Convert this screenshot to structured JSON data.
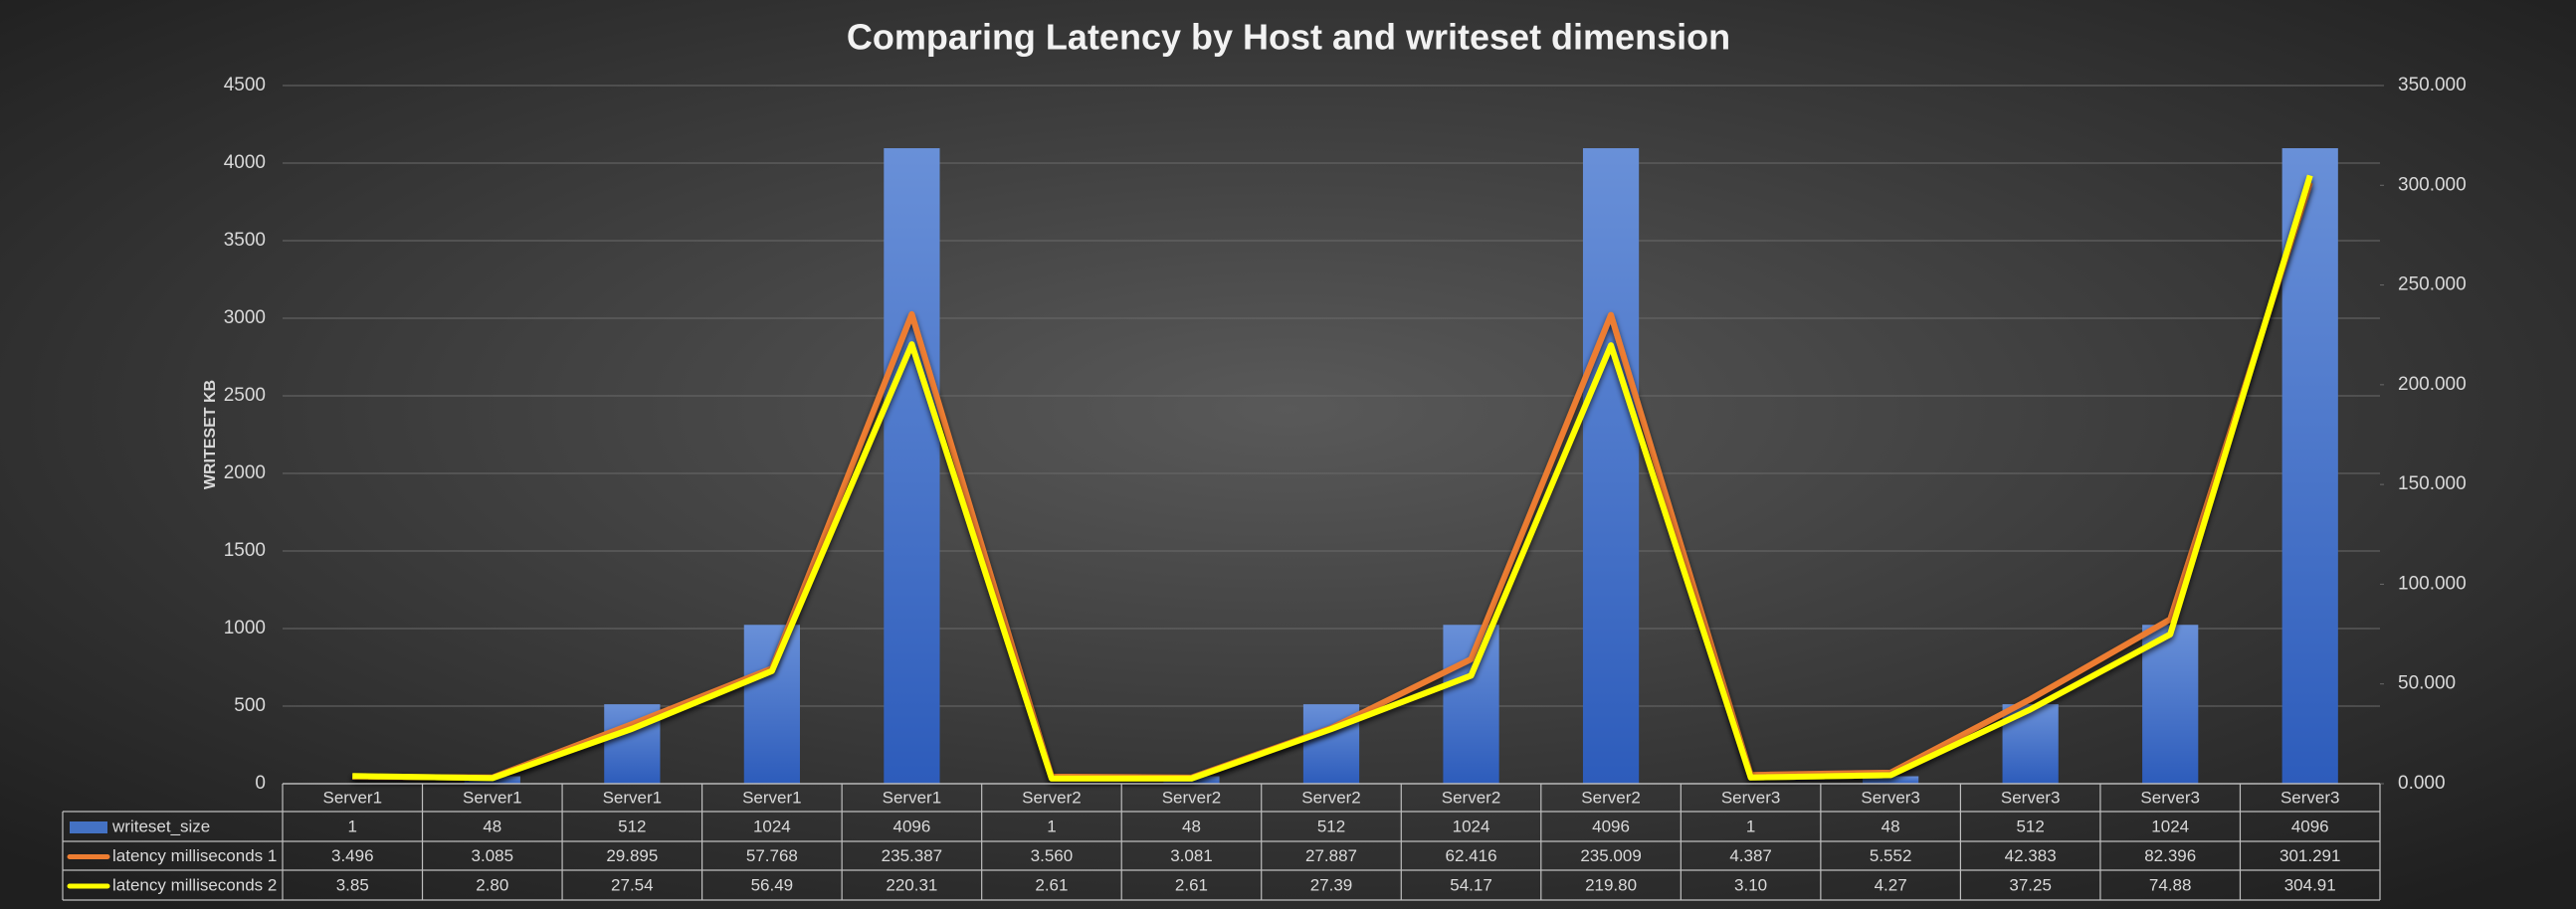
{
  "chart_data": {
    "type": "bar_line_table",
    "title": "Comparing Latency by Host and writeset dimension",
    "y_label": "WRITESET KB",
    "categories": [
      "Server1",
      "Server1",
      "Server1",
      "Server1",
      "Server1",
      "Server2",
      "Server2",
      "Server2",
      "Server2",
      "Server2",
      "Server3",
      "Server3",
      "Server3",
      "Server3",
      "Server3"
    ],
    "series": [
      {
        "name": "writeset_size",
        "type": "bar",
        "color": "#4472c4",
        "values": [
          1,
          48,
          512,
          1024,
          4096,
          1,
          48,
          512,
          1024,
          4096,
          1,
          48,
          512,
          1024,
          4096
        ]
      },
      {
        "name": "latency milliseconds 1",
        "type": "line",
        "axis": "y2",
        "color": "#ed7d31",
        "values": [
          3.496,
          3.085,
          29.895,
          57.768,
          235.387,
          3.56,
          3.081,
          27.887,
          62.416,
          235.009,
          4.387,
          5.552,
          42.383,
          82.396,
          301.291
        ],
        "value_labels": [
          "3.496",
          "3.085",
          "29.895",
          "57.768",
          "235.387",
          "3.560",
          "3.081",
          "27.887",
          "62.416",
          "235.009",
          "4.387",
          "5.552",
          "42.383",
          "82.396",
          "301.291"
        ]
      },
      {
        "name": "latency milliseconds 2",
        "type": "line",
        "axis": "y2",
        "color": "#ffff00",
        "values": [
          3.85,
          2.8,
          27.54,
          56.49,
          220.31,
          2.61,
          2.61,
          27.39,
          54.17,
          219.8,
          3.1,
          4.27,
          37.25,
          74.88,
          304.91
        ],
        "value_labels": [
          "3.85",
          "2.80",
          "27.54",
          "56.49",
          "220.31",
          "2.61",
          "2.61",
          "27.39",
          "54.17",
          "219.80",
          "3.10",
          "4.27",
          "37.25",
          "74.88",
          "304.91"
        ]
      }
    ],
    "ylim": [
      0,
      4500
    ],
    "yticks": [
      0,
      500,
      1000,
      1500,
      2000,
      2500,
      3000,
      3500,
      4000,
      4500
    ],
    "y2lim": [
      0,
      350
    ],
    "y2ticks": [
      {
        "value": 0,
        "label": "0.000"
      },
      {
        "value": 50,
        "label": "50.000"
      },
      {
        "value": 100,
        "label": "100.000"
      },
      {
        "value": 150,
        "label": "150.000"
      },
      {
        "value": 200,
        "label": "200.000"
      },
      {
        "value": 250,
        "label": "250.000"
      },
      {
        "value": 300,
        "label": "300.000"
      },
      {
        "value": 350,
        "label": "350.000"
      }
    ],
    "grid": true
  }
}
